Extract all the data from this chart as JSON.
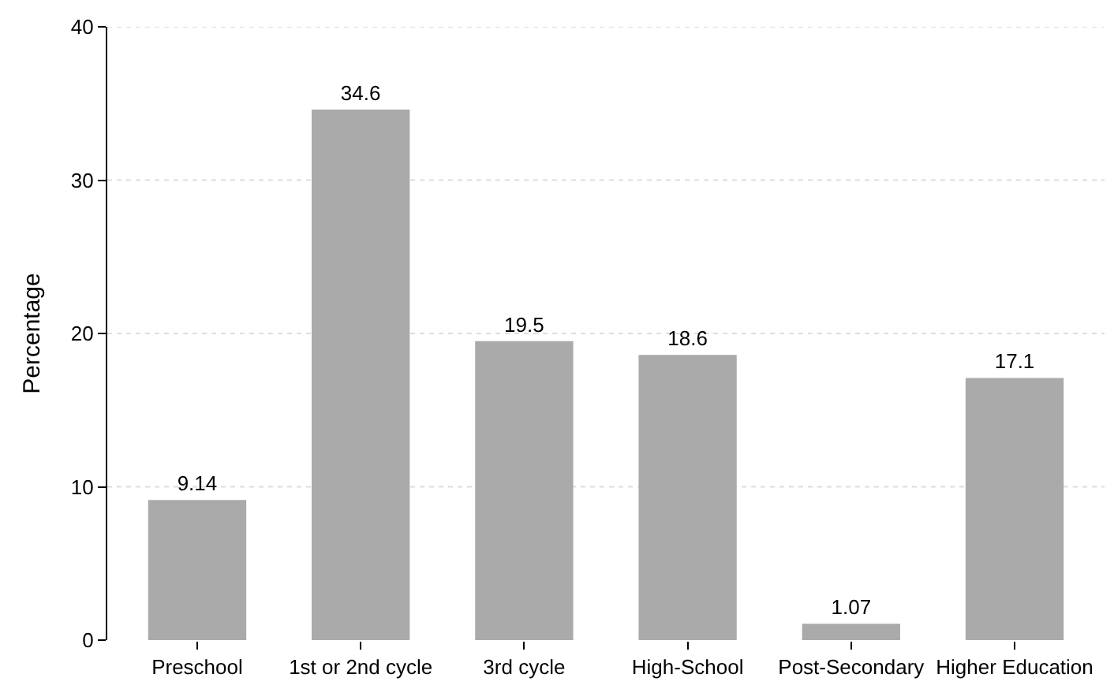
{
  "chart_data": {
    "type": "bar",
    "ylabel": "Percentage",
    "categories": [
      "Preschool",
      "1st or 2nd cycle",
      "3rd cycle",
      "High-School",
      "Post-Secondary",
      "Higher Education"
    ],
    "values": [
      9.14,
      34.6,
      19.5,
      18.6,
      1.07,
      17.1
    ],
    "color": "#aaaaaa",
    "ylim": [
      0,
      40
    ],
    "yticks": [
      0,
      10,
      20,
      30,
      40
    ],
    "grid": "y",
    "data_labels": true
  }
}
